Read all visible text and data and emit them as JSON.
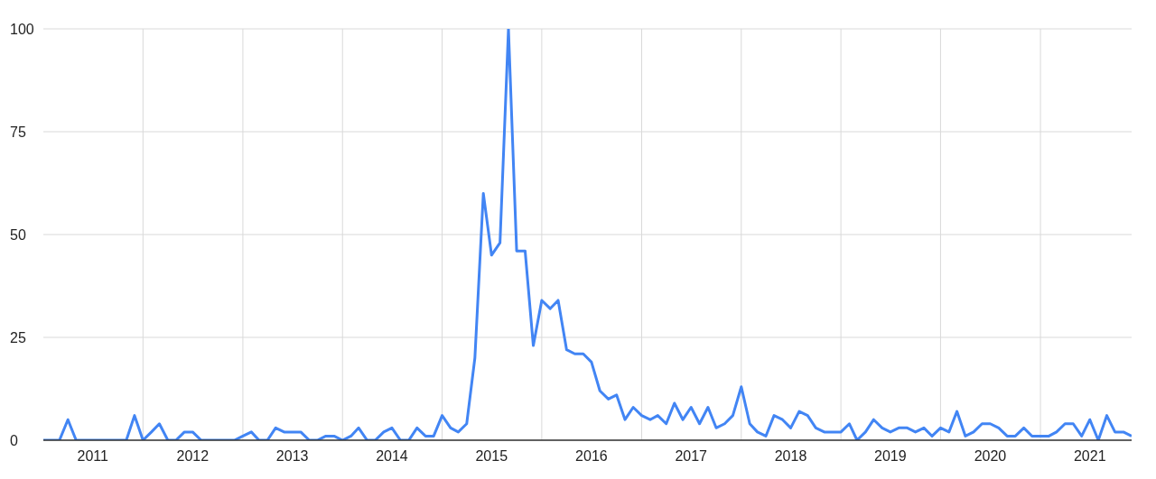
{
  "chart_data": {
    "type": "line",
    "x": [
      "2011-01",
      "2011-02",
      "2011-03",
      "2011-04",
      "2011-05",
      "2011-06",
      "2011-07",
      "2011-08",
      "2011-09",
      "2011-10",
      "2011-11",
      "2011-12",
      "2012-01",
      "2012-02",
      "2012-03",
      "2012-04",
      "2012-05",
      "2012-06",
      "2012-07",
      "2012-08",
      "2012-09",
      "2012-10",
      "2012-11",
      "2012-12",
      "2013-01",
      "2013-02",
      "2013-03",
      "2013-04",
      "2013-05",
      "2013-06",
      "2013-07",
      "2013-08",
      "2013-09",
      "2013-10",
      "2013-11",
      "2013-12",
      "2014-01",
      "2014-02",
      "2014-03",
      "2014-04",
      "2014-05",
      "2014-06",
      "2014-07",
      "2014-08",
      "2014-09",
      "2014-10",
      "2014-11",
      "2014-12",
      "2015-01",
      "2015-02",
      "2015-03",
      "2015-04",
      "2015-05",
      "2015-06",
      "2015-07",
      "2015-08",
      "2015-09",
      "2015-10",
      "2015-11",
      "2015-12",
      "2016-01",
      "2016-02",
      "2016-03",
      "2016-04",
      "2016-05",
      "2016-06",
      "2016-07",
      "2016-08",
      "2016-09",
      "2016-10",
      "2016-11",
      "2016-12",
      "2017-01",
      "2017-02",
      "2017-03",
      "2017-04",
      "2017-05",
      "2017-06",
      "2017-07",
      "2017-08",
      "2017-09",
      "2017-10",
      "2017-11",
      "2017-12",
      "2018-01",
      "2018-02",
      "2018-03",
      "2018-04",
      "2018-05",
      "2018-06",
      "2018-07",
      "2018-08",
      "2018-09",
      "2018-10",
      "2018-11",
      "2018-12",
      "2019-01",
      "2019-02",
      "2019-03",
      "2019-04",
      "2019-05",
      "2019-06",
      "2019-07",
      "2019-08",
      "2019-09",
      "2019-10",
      "2019-11",
      "2019-12",
      "2020-01",
      "2020-02",
      "2020-03",
      "2020-04",
      "2020-05",
      "2020-06",
      "2020-07",
      "2020-08",
      "2020-09",
      "2020-10",
      "2020-11",
      "2020-12",
      "2021-01",
      "2021-02",
      "2021-03",
      "2021-04",
      "2021-05",
      "2021-06",
      "2021-07",
      "2021-08",
      "2021-09",
      "2021-10",
      "2021-11",
      "2021-12"
    ],
    "series": [
      {
        "color": "#4285f4",
        "values": [
          0,
          0,
          0,
          5,
          0,
          0,
          0,
          0,
          0,
          0,
          0,
          6,
          0,
          2,
          4,
          0,
          0,
          2,
          2,
          0,
          0,
          0,
          0,
          0,
          1,
          2,
          0,
          0,
          3,
          2,
          2,
          2,
          0,
          0,
          1,
          1,
          0,
          1,
          3,
          0,
          0,
          2,
          3,
          0,
          0,
          3,
          1,
          1,
          6,
          3,
          2,
          4,
          20,
          60,
          45,
          48,
          100,
          46,
          46,
          23,
          34,
          32,
          34,
          22,
          21,
          21,
          19,
          12,
          10,
          11,
          5,
          8,
          6,
          5,
          6,
          4,
          9,
          5,
          8,
          4,
          8,
          3,
          4,
          6,
          13,
          4,
          2,
          1,
          6,
          5,
          3,
          7,
          6,
          3,
          2,
          2,
          2,
          4,
          0,
          2,
          5,
          3,
          2,
          3,
          3,
          2,
          3,
          1,
          3,
          2,
          7,
          1,
          2,
          4,
          4,
          3,
          1,
          1,
          3,
          1,
          1,
          1,
          2,
          4,
          4,
          1,
          5,
          0,
          6,
          2,
          2,
          1
        ]
      }
    ],
    "xlim": [
      "2011-01",
      "2021-12"
    ],
    "xticks": [
      {
        "value": "2011-07",
        "label": "2011"
      },
      {
        "value": "2012-01",
        "label": null
      },
      {
        "value": "2012-07",
        "label": "2012"
      },
      {
        "value": "2013-01",
        "label": null
      },
      {
        "value": "2013-07",
        "label": "2013"
      },
      {
        "value": "2014-01",
        "label": null
      },
      {
        "value": "2014-07",
        "label": "2014"
      },
      {
        "value": "2015-01",
        "label": null
      },
      {
        "value": "2015-07",
        "label": "2015"
      },
      {
        "value": "2016-01",
        "label": null
      },
      {
        "value": "2016-07",
        "label": "2016"
      },
      {
        "value": "2017-01",
        "label": null
      },
      {
        "value": "2017-07",
        "label": "2017"
      },
      {
        "value": "2018-01",
        "label": null
      },
      {
        "value": "2018-07",
        "label": "2018"
      },
      {
        "value": "2019-01",
        "label": null
      },
      {
        "value": "2019-07",
        "label": "2019"
      },
      {
        "value": "2020-01",
        "label": null
      },
      {
        "value": "2020-07",
        "label": "2020"
      },
      {
        "value": "2021-01",
        "label": null
      },
      {
        "value": "2021-07",
        "label": "2021"
      }
    ],
    "ylim": [
      0,
      100
    ],
    "yticks": [
      0,
      25,
      50,
      75,
      100
    ],
    "grid": true,
    "marker": "none",
    "line_style": "solid"
  }
}
